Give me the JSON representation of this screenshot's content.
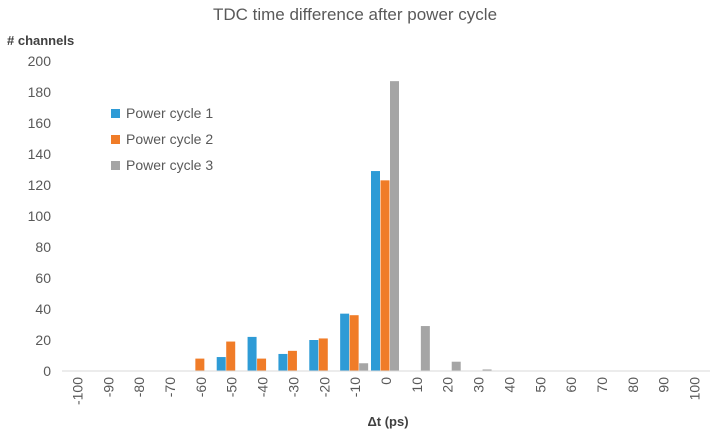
{
  "chart_data": {
    "type": "bar",
    "title": "TDC time difference after power cycle",
    "ylabel": "# channels",
    "xlabel": "Δt (ps)",
    "ylim": [
      0,
      200
    ],
    "yticks": [
      0,
      20,
      40,
      60,
      80,
      100,
      120,
      140,
      160,
      180,
      200
    ],
    "categories": [
      "-100",
      "-90",
      "-80",
      "-70",
      "-60",
      "-50",
      "-40",
      "-30",
      "-20",
      "-10",
      "0",
      "10",
      "20",
      "30",
      "40",
      "50",
      "60",
      "70",
      "80",
      "90",
      "100"
    ],
    "series": [
      {
        "name": "Power cycle 1",
        "color": "#2E9BD6",
        "values": [
          0,
          0,
          0,
          0,
          0,
          9,
          22,
          11,
          20,
          37,
          129,
          0,
          0,
          0,
          0,
          0,
          0,
          0,
          0,
          0,
          0
        ]
      },
      {
        "name": "Power cycle 2",
        "color": "#F07C28",
        "values": [
          0,
          0,
          0,
          0,
          8,
          19,
          8,
          13,
          21,
          36,
          123,
          0,
          0,
          0,
          0,
          0,
          0,
          0,
          0,
          0,
          0
        ]
      },
      {
        "name": "Power cycle 3",
        "color": "#A5A5A5",
        "values": [
          0,
          0,
          0,
          0,
          0,
          0,
          0,
          0,
          0,
          5,
          187,
          29,
          6,
          1,
          0,
          0,
          0,
          0,
          0,
          0,
          0
        ]
      }
    ],
    "grid": false,
    "legend_position": "top-left"
  }
}
